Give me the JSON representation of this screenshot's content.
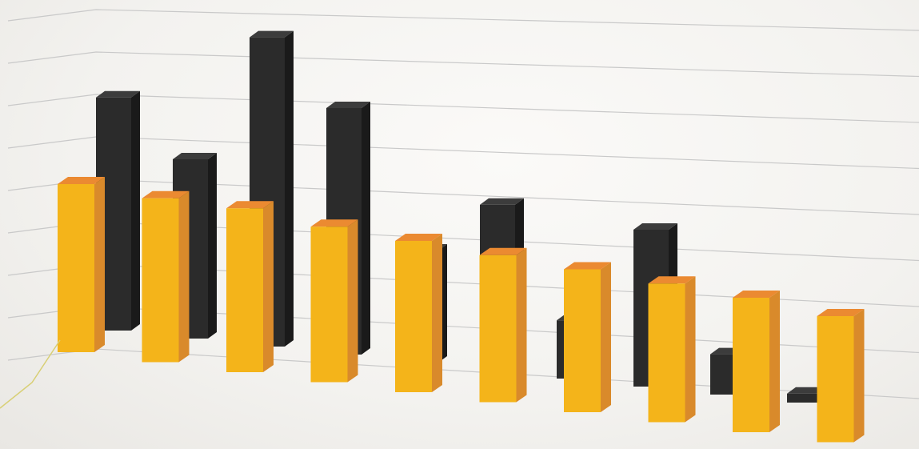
{
  "chart_data": {
    "type": "bar",
    "style": "3d-clustered",
    "categories": [
      "",
      "",
      "",
      "",
      "",
      "",
      "",
      "",
      "",
      ""
    ],
    "series": [
      {
        "values": [
          5.2,
          4.0,
          6.9,
          5.5,
          2.5,
          3.7,
          1.3,
          3.5,
          0.9,
          0.2
        ],
        "color": "#2b2b2b"
      },
      {
        "values": [
          4.0,
          3.9,
          3.9,
          3.7,
          3.6,
          3.5,
          3.4,
          3.3,
          3.2,
          3.0
        ],
        "color": "#f4b41a"
      }
    ],
    "ylim": [
      0,
      8
    ],
    "grid": true,
    "legend": "none",
    "colors": {
      "front_face_gold": "#f4b41a",
      "side_face_gold": "#d98a2b",
      "top_face_gold": "#eb8a31",
      "front_face_dark": "#2b2b2b",
      "side_face_dark": "#1a1a1a",
      "top_face_dark": "#3c3c3c",
      "gridline": "#c9c9c9"
    }
  }
}
